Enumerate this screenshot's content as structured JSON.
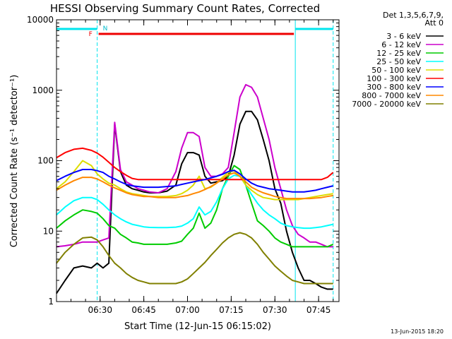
{
  "chart_data": {
    "type": "line",
    "title": "HESSI Observing Summary Count Rates, Corrected",
    "xlabel": "Start Time (12-Jun-15 06:15:02)",
    "ylabel": "Corrected Count Rate (s⁻¹ detector⁻¹)",
    "y_scale": "log",
    "ylim": [
      1,
      10000
    ],
    "xlim": [
      "06:15:02",
      "07:52:00"
    ],
    "x_ticks": [
      "06:30",
      "06:45",
      "07:00",
      "07:15",
      "07:30",
      "07:45"
    ],
    "y_ticks": [
      "1",
      "10",
      "100",
      "1000",
      "10000"
    ],
    "grid": false,
    "legend_title": [
      "Det 1,3,5,6,7,9,",
      "Att 0"
    ],
    "legend_position": "right",
    "timestamp": "13-Jun-2015 18:20",
    "x": [
      "06:15",
      "06:18",
      "06:21",
      "06:24",
      "06:27",
      "06:29",
      "06:31",
      "06:33",
      "06:35",
      "06:37",
      "06:39",
      "06:41",
      "06:43",
      "06:45",
      "06:47",
      "06:50",
      "06:53",
      "06:56",
      "06:58",
      "07:00",
      "07:02",
      "07:04",
      "07:06",
      "07:08",
      "07:10",
      "07:12",
      "07:14",
      "07:16",
      "07:18",
      "07:20",
      "07:22",
      "07:24",
      "07:26",
      "07:28",
      "07:30",
      "07:32",
      "07:34",
      "07:36",
      "07:38",
      "07:40",
      "07:42",
      "07:44",
      "07:46",
      "07:48",
      "07:50"
    ],
    "series": [
      {
        "name": "3 - 6 keV",
        "color": "#000000",
        "values": [
          1.3,
          2,
          3,
          3.2,
          3,
          3.5,
          3,
          3.5,
          330,
          70,
          45,
          40,
          38,
          36,
          35,
          35,
          37,
          45,
          90,
          130,
          130,
          120,
          60,
          48,
          50,
          52,
          60,
          120,
          330,
          500,
          500,
          380,
          200,
          100,
          40,
          25,
          10,
          5,
          3,
          2,
          2,
          1.8,
          1.6,
          1.5,
          1.5
        ]
      },
      {
        "name": "6 - 12 keV",
        "color": "#cc00cc",
        "values": [
          6,
          6.2,
          6.5,
          7,
          7,
          7,
          7.5,
          8,
          350,
          75,
          50,
          45,
          40,
          38,
          36,
          35,
          40,
          70,
          150,
          250,
          250,
          220,
          80,
          60,
          60,
          65,
          80,
          250,
          800,
          1200,
          1100,
          800,
          400,
          200,
          80,
          40,
          20,
          12,
          9,
          8,
          7,
          7,
          6.5,
          6,
          6
        ]
      },
      {
        "name": "12 - 25 keV",
        "color": "#00cc00",
        "values": [
          11,
          14,
          17,
          20,
          19,
          18,
          15,
          12,
          11,
          9,
          8,
          7,
          6.8,
          6.5,
          6.5,
          6.5,
          6.5,
          6.8,
          7.2,
          9,
          11,
          18,
          11,
          13,
          20,
          40,
          60,
          85,
          75,
          45,
          25,
          14,
          12,
          10,
          8,
          7,
          6.5,
          6,
          6,
          6,
          6,
          6,
          6,
          6,
          6.5
        ]
      },
      {
        "name": "25 - 50 keV",
        "color": "#00ffff",
        "values": [
          17,
          22,
          27,
          30,
          30,
          28,
          24,
          20,
          17,
          15,
          13.5,
          12.5,
          12,
          11.5,
          11.3,
          11.2,
          11.2,
          11.4,
          11.8,
          13,
          15,
          22,
          17,
          19,
          26,
          40,
          55,
          62,
          60,
          45,
          33,
          25,
          20,
          17,
          15,
          13,
          12,
          11.5,
          11.2,
          11,
          11,
          11.2,
          11.5,
          12,
          12.5
        ]
      },
      {
        "name": "50 - 100 keV",
        "color": "#dddd00",
        "values": [
          40,
          50,
          70,
          100,
          85,
          65,
          55,
          48,
          45,
          40,
          36,
          34,
          33,
          32,
          31,
          31,
          31,
          32,
          34,
          38,
          45,
          60,
          40,
          42,
          48,
          58,
          68,
          72,
          60,
          45,
          38,
          33,
          30,
          29,
          28,
          28,
          28,
          28,
          28,
          29,
          30,
          31,
          32,
          33,
          34
        ]
      },
      {
        "name": "100 - 300 keV",
        "color": "#ff0000",
        "values": [
          110,
          130,
          145,
          150,
          140,
          128,
          112,
          95,
          80,
          70,
          62,
          56,
          54,
          54,
          54,
          54,
          54,
          54,
          54,
          54,
          54,
          54,
          54,
          54,
          54,
          54,
          54,
          54,
          54,
          54,
          54,
          54,
          54,
          54,
          54,
          54,
          54,
          54,
          54,
          54,
          54,
          54,
          54,
          58,
          68
        ]
      },
      {
        "name": "300 - 800 keV",
        "color": "#0000ff",
        "values": [
          52,
          60,
          68,
          75,
          75,
          72,
          68,
          60,
          55,
          50,
          46,
          44,
          43,
          42,
          42,
          42,
          43,
          44,
          46,
          48,
          50,
          52,
          54,
          57,
          60,
          64,
          70,
          73,
          65,
          55,
          48,
          44,
          42,
          40,
          39,
          38,
          37,
          36,
          36,
          36,
          37,
          38,
          40,
          42,
          44
        ]
      },
      {
        "name": "800 - 7000 keV",
        "color": "#ff8800",
        "values": [
          38,
          45,
          52,
          58,
          58,
          55,
          50,
          45,
          41,
          38,
          35,
          33,
          32,
          31,
          31,
          30,
          30,
          30,
          31,
          32,
          34,
          36,
          39,
          43,
          48,
          55,
          63,
          67,
          60,
          50,
          42,
          38,
          35,
          33,
          31,
          30,
          29,
          29,
          29,
          29,
          29,
          29.5,
          30,
          31,
          32
        ]
      },
      {
        "name": "7000 - 20000 keV",
        "color": "#808000",
        "values": [
          3.5,
          5,
          6.5,
          8,
          8.2,
          7.5,
          6,
          4.5,
          3.5,
          3,
          2.5,
          2.2,
          2,
          1.9,
          1.8,
          1.8,
          1.8,
          1.8,
          1.9,
          2.1,
          2.5,
          3,
          3.6,
          4.5,
          5.5,
          6.8,
          8,
          9,
          9.5,
          9,
          8,
          6.5,
          5,
          4,
          3.2,
          2.7,
          2.3,
          2,
          1.9,
          1.8,
          1.8,
          1.8,
          1.8,
          1.8,
          1.8
        ]
      }
    ],
    "annotations": {
      "saa_intervals": [
        [
          "06:15:02",
          "06:29:00"
        ],
        [
          "07:37:00",
          "07:50:00"
        ]
      ],
      "flag_letters": [
        "F",
        "N"
      ],
      "flag_F_interval": [
        "06:29:00",
        "07:37:00"
      ]
    }
  }
}
